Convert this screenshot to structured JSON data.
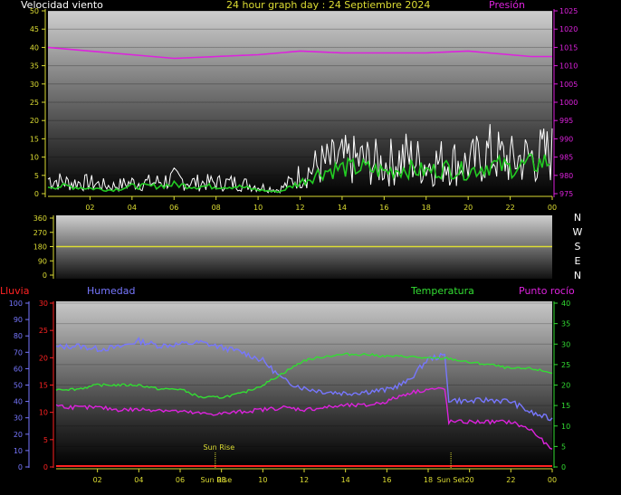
{
  "header": {
    "wind_label": "Velocidad viento",
    "title": "24 hour graph day : 24 Septiembre 2024",
    "pressure_label": "Presión"
  },
  "middle_header": {
    "rain_label": "Lluvia",
    "humidity_label": "Humedad",
    "temp_label": "Temperatura",
    "dewpoint_label": "Punto rocío"
  },
  "colors": {
    "wind": "#ffffff",
    "wind_avg": "#22cc22",
    "pressure": "#dd22dd",
    "direction": "#dddd33",
    "rain": "#ff2222",
    "humidity": "#7777ff",
    "temperature": "#33dd33",
    "dewpoint": "#dd22dd",
    "axis_yellow": "#dddd33"
  },
  "x_ticks": [
    "02",
    "04",
    "06",
    "08",
    "10",
    "12",
    "14",
    "16",
    "18",
    "20",
    "22",
    "00"
  ],
  "compass": [
    "N",
    "W",
    "S",
    "E",
    "N"
  ],
  "sun": {
    "rise_label": "Sun Rise",
    "set_label": "Sun Set",
    "rise_hour": 7.7,
    "set_hour": 19.1
  },
  "chart_data": [
    {
      "type": "line",
      "title": "24 hour graph day : 24 Septiembre 2024",
      "x_unit": "hours since 00:00",
      "left_axis": {
        "ticks": [
          "0",
          "5",
          "10",
          "15",
          "20",
          "25",
          "30",
          "35",
          "40",
          "45",
          "50"
        ],
        "ylim": [
          0,
          50
        ]
      },
      "right_axis": {
        "ticks": [
          "975",
          "980",
          "985",
          "990",
          "995",
          "1000",
          "1005",
          "1010",
          "1015",
          "1020",
          "1025"
        ],
        "ylim": [
          975,
          1025
        ]
      },
      "series": [
        {
          "name": "Velocidad viento",
          "axis": "left",
          "x": [
            0,
            1,
            2,
            3,
            4,
            5,
            6,
            7,
            8,
            9,
            10,
            11,
            12,
            13,
            14,
            15,
            16,
            17,
            18,
            19,
            20,
            21,
            22,
            23,
            24
          ],
          "y": [
            4,
            3,
            3,
            2,
            3,
            3,
            4,
            3,
            3,
            3,
            2,
            1,
            5,
            8,
            9,
            9,
            8,
            10,
            8,
            9,
            8,
            11,
            9,
            10,
            11
          ]
        },
        {
          "axis": "left",
          "x": [
            0,
            1,
            2,
            3,
            4,
            5,
            6,
            7,
            8,
            9,
            10,
            11,
            12,
            13,
            14,
            15,
            16,
            17,
            18,
            19,
            20,
            21,
            22,
            23,
            24
          ],
          "y": [
            2,
            2,
            1.5,
            1,
            2,
            2,
            2.5,
            2,
            2,
            2,
            1,
            0.5,
            3,
            6,
            7,
            7,
            6,
            7,
            6,
            7,
            6,
            8,
            7,
            8,
            9
          ]
        },
        {
          "name": "Presión",
          "axis": "right",
          "x": [
            0,
            2,
            4,
            6,
            8,
            10,
            12,
            14,
            16,
            18,
            20,
            22,
            23,
            24
          ],
          "y": [
            1015,
            1014,
            1013,
            1012,
            1012.5,
            1013,
            1014,
            1013.5,
            1013.5,
            1013.5,
            1014,
            1013,
            1012.5,
            1012.5
          ]
        }
      ]
    },
    {
      "type": "line",
      "left_axis": {
        "ticks": [
          "0",
          "90",
          "180",
          "270",
          "360"
        ],
        "ylim": [
          0,
          360
        ]
      },
      "series": [
        {
          "axis": "left",
          "x": [
            0,
            24
          ],
          "y": [
            180,
            180
          ]
        }
      ]
    },
    {
      "type": "line",
      "humidity_axis": {
        "ticks": [
          "0",
          "10",
          "20",
          "30",
          "40",
          "50",
          "60",
          "70",
          "80",
          "90",
          "100"
        ],
        "ylim": [
          0,
          100
        ]
      },
      "rain_axis": {
        "ticks": [
          "0",
          "5",
          "10",
          "15",
          "20",
          "25",
          "30"
        ],
        "ylim": [
          0,
          30
        ]
      },
      "temp_axis": {
        "ticks": [
          "0",
          "5",
          "10",
          "15",
          "20",
          "25",
          "30",
          "35",
          "40"
        ],
        "ylim": [
          0,
          40
        ]
      },
      "series": [
        {
          "name": "Humedad",
          "axis": "humidity",
          "x": [
            0,
            1,
            2,
            3,
            4,
            5,
            6,
            7,
            8,
            9,
            10,
            11,
            12,
            13,
            14,
            15,
            16,
            17,
            18,
            18.8,
            19,
            20,
            21,
            22,
            23,
            24
          ],
          "y": [
            73,
            74,
            72,
            73,
            77,
            74,
            75,
            76,
            73,
            70,
            65,
            53,
            48,
            46,
            45,
            46,
            47,
            52,
            66,
            68,
            41,
            40,
            41,
            40,
            33,
            29
          ]
        },
        {
          "name": "Lluvia",
          "axis": "rain",
          "x": [
            0,
            24
          ],
          "y": [
            0,
            0
          ]
        },
        {
          "name": "Temperatura",
          "axis": "temp",
          "x": [
            0,
            1,
            2,
            3,
            4,
            5,
            6,
            7,
            8,
            9,
            10,
            11,
            12,
            13,
            14,
            15,
            16,
            17,
            18,
            19,
            20,
            21,
            22,
            23,
            24
          ],
          "y": [
            19,
            19,
            20,
            20,
            20,
            19,
            19,
            17,
            17,
            18,
            20,
            23,
            26,
            27,
            27.5,
            27.5,
            27,
            27,
            26.5,
            26.5,
            25.5,
            25,
            24,
            24,
            23
          ]
        },
        {
          "name": "Punto rocío",
          "axis": "temp",
          "x": [
            0,
            1,
            2,
            3,
            4,
            5,
            6,
            7,
            8,
            9,
            10,
            11,
            12,
            13,
            14,
            15,
            16,
            17,
            18,
            18.8,
            19,
            20,
            21,
            22,
            23,
            24
          ],
          "y": [
            15,
            14.5,
            14.5,
            14,
            14,
            14,
            13.5,
            13,
            13,
            13.5,
            14,
            14.5,
            14,
            14.5,
            15,
            15,
            16,
            18,
            19,
            19,
            11,
            11,
            11,
            11,
            9,
            4
          ]
        }
      ]
    }
  ]
}
